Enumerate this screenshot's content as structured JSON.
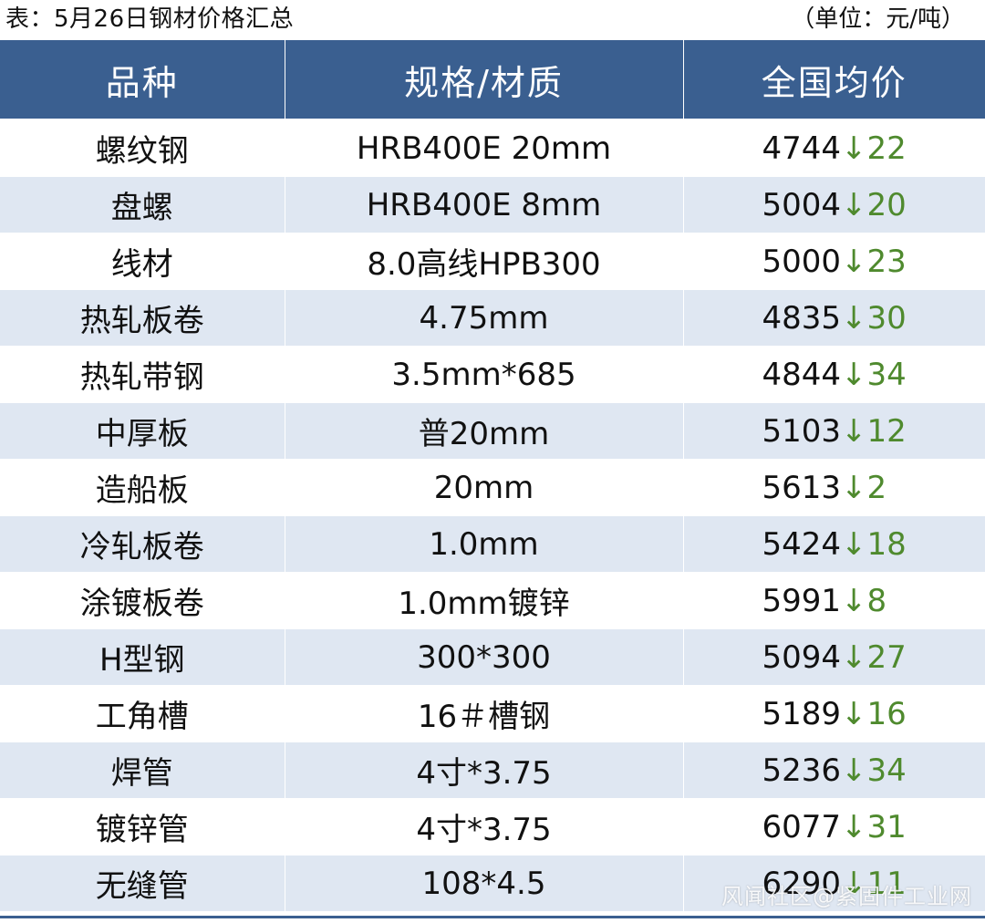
{
  "caption": {
    "title": "表：5月26日钢材价格汇总",
    "unit": "（单位：元/吨）"
  },
  "table": {
    "headers": [
      "品种",
      "规格/材质",
      "全国均价"
    ],
    "change_symbol": "↓",
    "rows": [
      {
        "name": "螺纹钢",
        "spec": "HRB400E 20mm",
        "price": "4744",
        "change": "22"
      },
      {
        "name": "盘螺",
        "spec": "HRB400E 8mm",
        "price": "5004",
        "change": "20"
      },
      {
        "name": "线材",
        "spec": "8.0高线HPB300",
        "price": "5000",
        "change": "23"
      },
      {
        "name": "热轧板卷",
        "spec": "4.75mm",
        "price": "4835",
        "change": "30"
      },
      {
        "name": "热轧带钢",
        "spec": "3.5mm*685",
        "price": "4844",
        "change": "34"
      },
      {
        "name": "中厚板",
        "spec": "普20mm",
        "price": "5103",
        "change": "12"
      },
      {
        "name": "造船板",
        "spec": "20mm",
        "price": "5613",
        "change": "2"
      },
      {
        "name": "冷轧板卷",
        "spec": "1.0mm",
        "price": "5424",
        "change": "18"
      },
      {
        "name": "涂镀板卷",
        "spec": "1.0mm镀锌",
        "price": "5991",
        "change": "8"
      },
      {
        "name": "H型钢",
        "spec": "300*300",
        "price": "5094",
        "change": "27"
      },
      {
        "name": "工角槽",
        "spec": "16＃槽钢",
        "price": "5189",
        "change": "16"
      },
      {
        "name": "焊管",
        "spec": "4寸*3.75",
        "price": "5236",
        "change": "34"
      },
      {
        "name": "镀锌管",
        "spec": "4寸*3.75",
        "price": "6077",
        "change": "31"
      },
      {
        "name": "无缝管",
        "spec": "108*4.5",
        "price": "6290",
        "change": "11"
      }
    ]
  },
  "watermark": "风闻社区@紧固件工业网",
  "colors": {
    "header_bg": "#3a5f90",
    "stripe_bg": "#dfe7f2",
    "change_down": "#4f8a2e"
  }
}
